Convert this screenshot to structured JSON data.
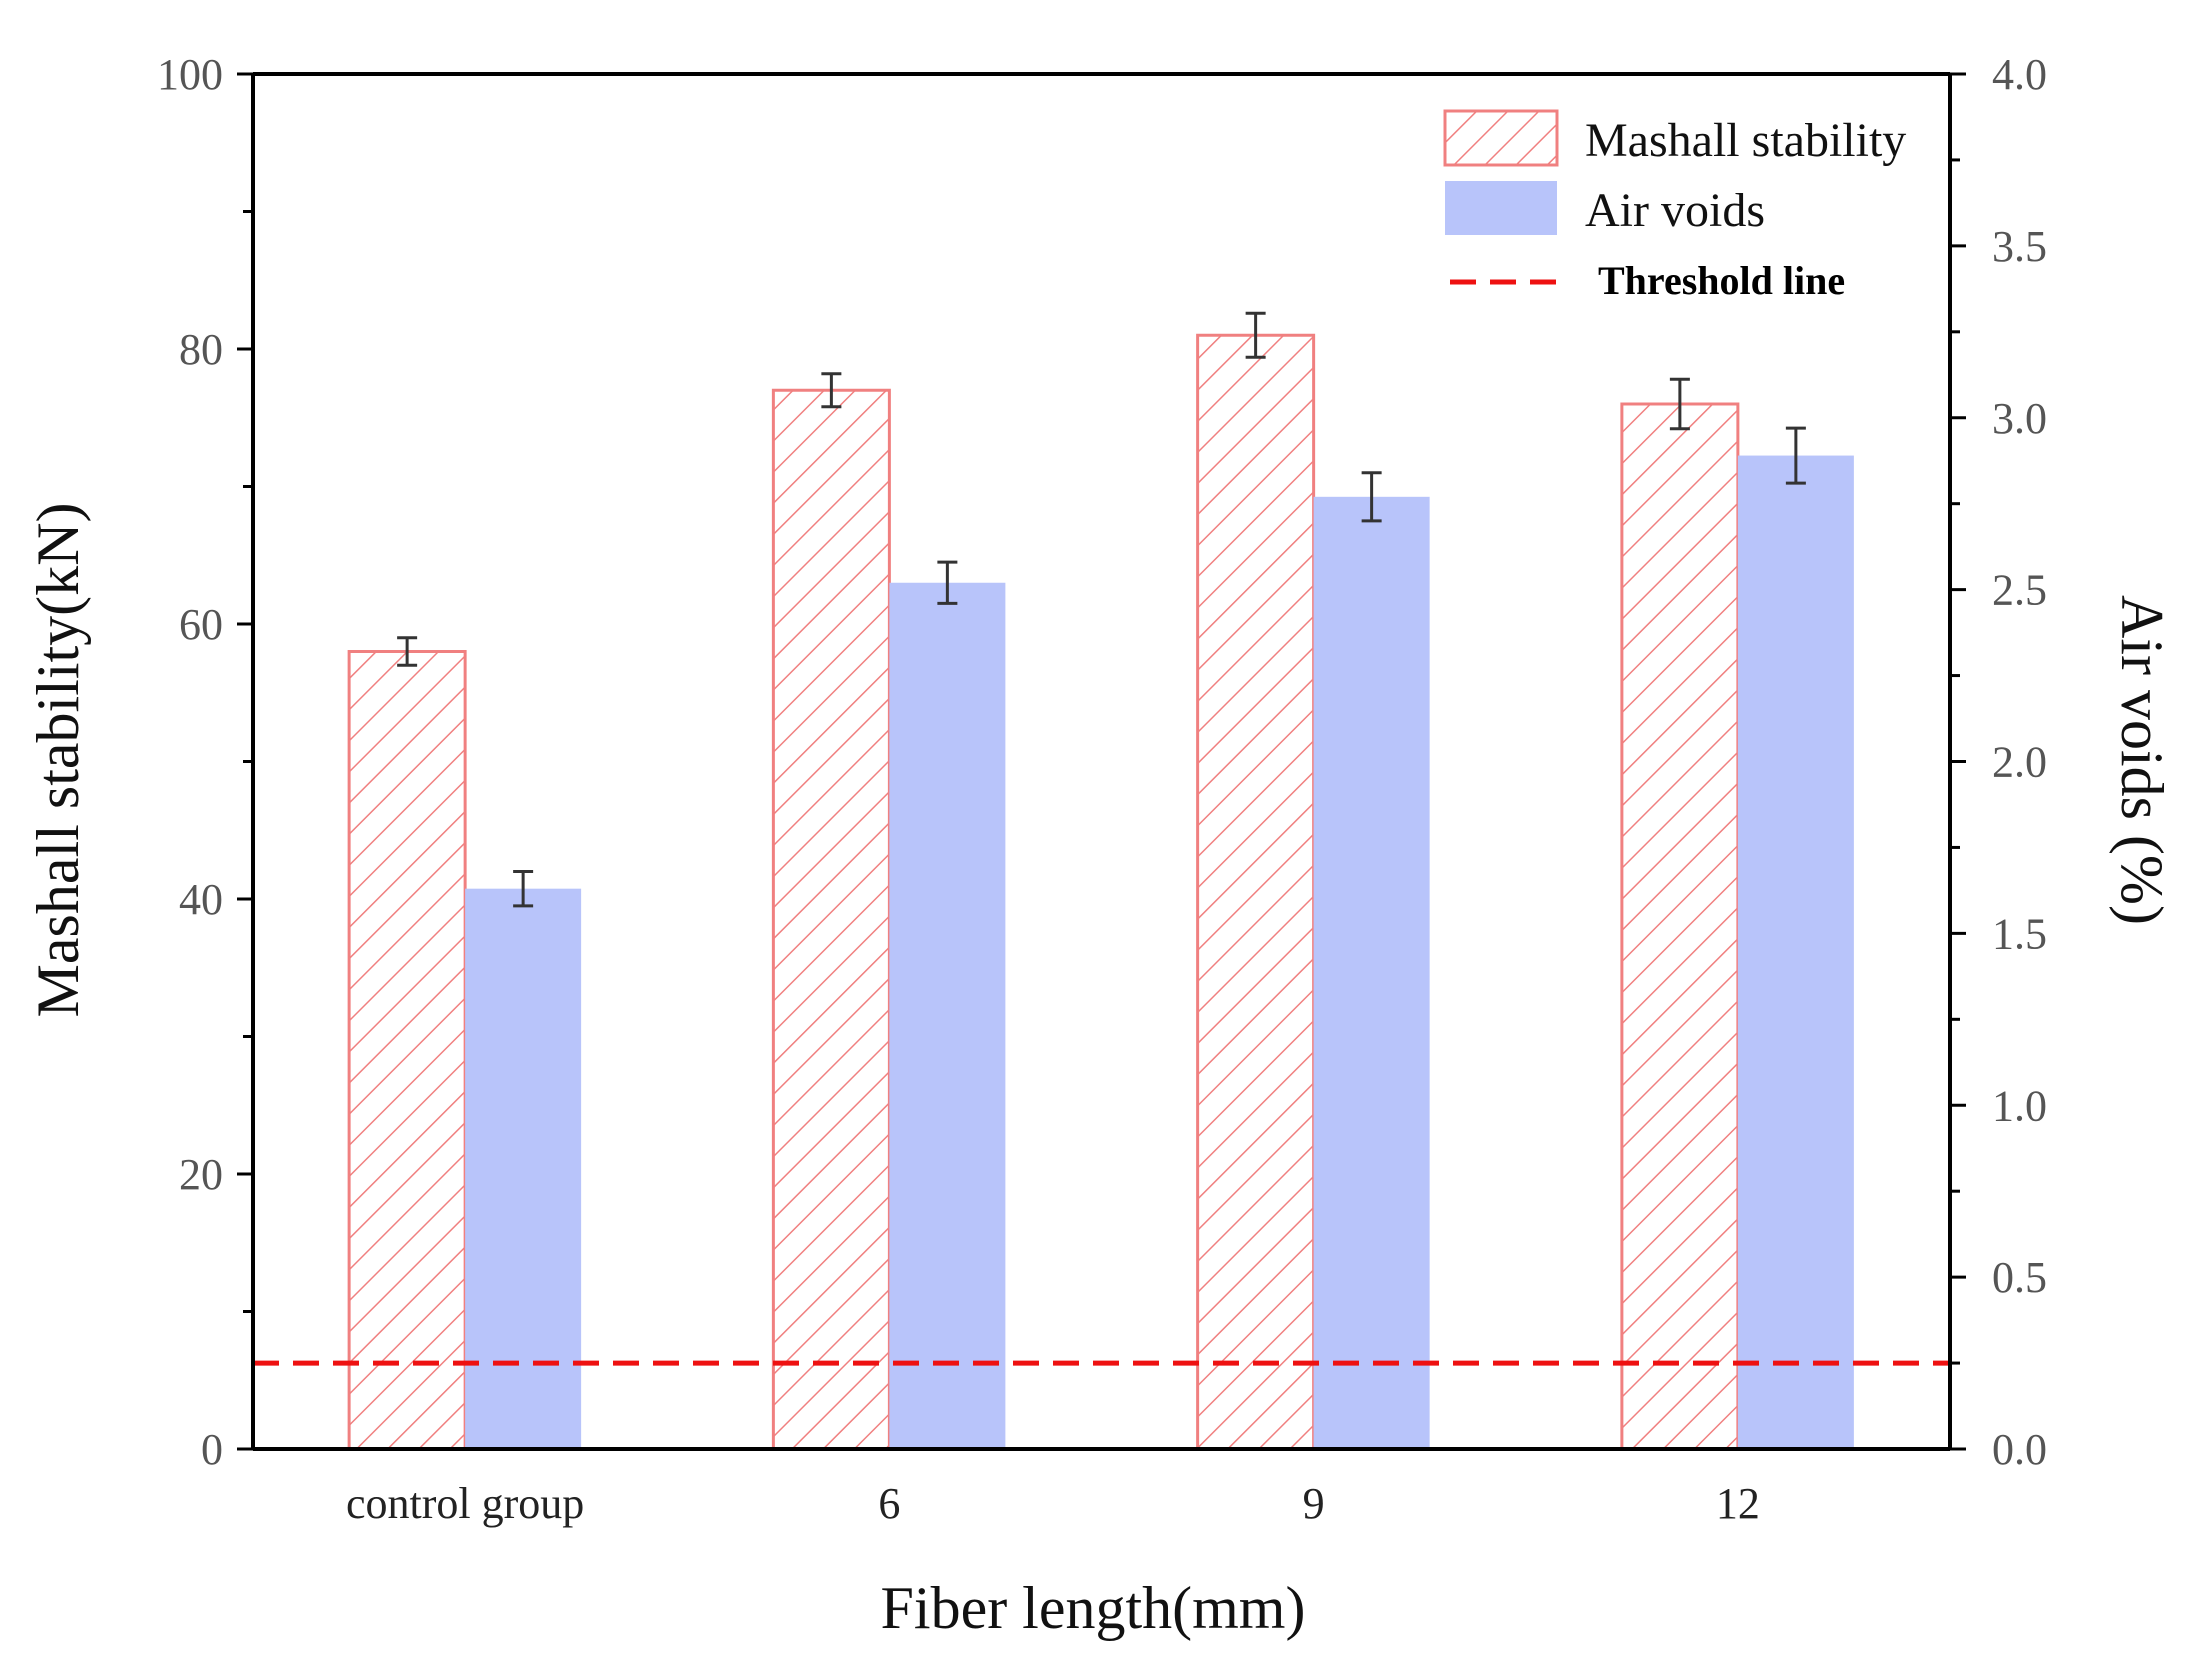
{
  "chart_data": {
    "type": "bar",
    "categories": [
      "control group",
      "6",
      "9",
      "12"
    ],
    "xlabel": "Fiber length(mm)",
    "ylabel_left": "Mashall stability(kN)",
    "ylabel_right": "Air voids (%)",
    "ylim_left": [
      0,
      100
    ],
    "ylim_right": [
      0,
      4
    ],
    "left_ticks": [
      "0",
      "20",
      "40",
      "60",
      "80",
      "100"
    ],
    "right_ticks": [
      "0.0",
      "0.5",
      "1.0",
      "1.5",
      "2.0",
      "2.5",
      "3.0",
      "3.5",
      "4.0"
    ],
    "series": [
      {
        "name": "Mashall stability",
        "axis": "left",
        "style": "hatched",
        "color": "#f08080",
        "values": [
          58,
          77,
          81,
          76
        ],
        "errors": [
          1.0,
          1.2,
          1.6,
          1.8
        ]
      },
      {
        "name": "Air voids",
        "axis": "right",
        "style": "solid",
        "color": "#b8c4fa",
        "values": [
          1.63,
          2.52,
          2.77,
          2.89
        ],
        "errors": [
          0.05,
          0.06,
          0.07,
          0.08
        ]
      }
    ],
    "threshold": {
      "name": "Threshold line",
      "axis": "right",
      "value": 0.25,
      "color": "#ee1111"
    },
    "legend_position": "top-right"
  }
}
